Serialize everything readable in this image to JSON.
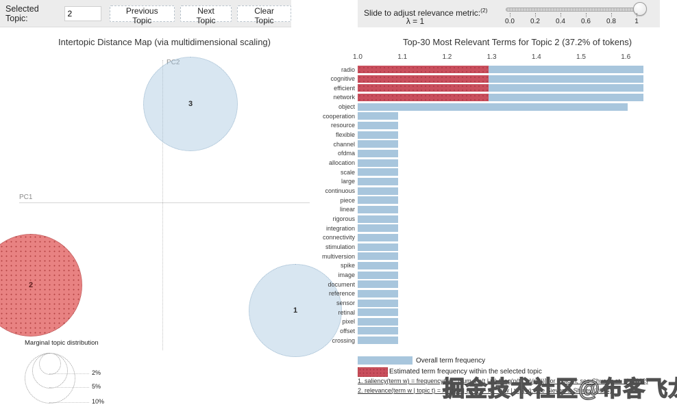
{
  "toolbar": {
    "selected_topic_label": "Selected Topic:",
    "selected_topic_value": "2",
    "previous_label": "Previous Topic",
    "next_label": "Next Topic",
    "clear_label": "Clear Topic"
  },
  "slider": {
    "label": "Slide to adjust relevance metric:",
    "label_footref": "(2)",
    "lambda_label": "λ = 1",
    "value": 1,
    "ticks": [
      "0.0",
      "0.2",
      "0.4",
      "0.6",
      "0.8",
      "1"
    ]
  },
  "chart_data": [
    {
      "type": "scatter",
      "title": "Intertopic Distance Map (via multidimensional scaling)",
      "xlabel": "PC1",
      "ylabel": "PC2",
      "topics": [
        {
          "id": "1",
          "cx": 430,
          "cy": 453,
          "r": 67,
          "selected": false
        },
        {
          "id": "2",
          "cx": 44,
          "cy": 416,
          "r": 74,
          "selected": true
        },
        {
          "id": "3",
          "cx": 277,
          "cy": 151,
          "r": 68,
          "selected": false
        }
      ],
      "size_legend": {
        "title": "Marginal topic distribution",
        "entries": [
          {
            "label": "2%",
            "r": 15
          },
          {
            "label": "5%",
            "r": 25
          },
          {
            "label": "10%",
            "r": 36
          }
        ]
      }
    },
    {
      "type": "bar",
      "title": "Top-30 Most Relevant Terms for Topic 2 (37.2% of tokens)",
      "x_ticks": [
        "1.0",
        "1.1",
        "1.2",
        "1.3",
        "1.4",
        "1.5",
        "1.6"
      ],
      "xlim": [
        1.0,
        1.645
      ],
      "grid": false,
      "legend_position": "bottom",
      "categories": [
        "radio",
        "cognitive",
        "efficient",
        "network",
        "object",
        "cooperation",
        "resource",
        "flexible",
        "channel",
        "ofdma",
        "allocation",
        "scale",
        "large",
        "continuous",
        "piece",
        "linear",
        "rigorous",
        "integration",
        "connectivity",
        "stimulation",
        "multiversion",
        "spike",
        "image",
        "document",
        "reference",
        "sensor",
        "retinal",
        "pixel",
        "offset",
        "crossing"
      ],
      "series": [
        {
          "name": "Overall term frequency",
          "color": "#a8c6dd",
          "values": [
            1.64,
            1.64,
            1.64,
            1.64,
            1.605,
            1.09,
            1.09,
            1.09,
            1.09,
            1.09,
            1.09,
            1.09,
            1.09,
            1.09,
            1.09,
            1.09,
            1.09,
            1.09,
            1.09,
            1.09,
            1.09,
            1.09,
            1.09,
            1.09,
            1.09,
            1.09,
            1.09,
            1.09,
            1.09,
            1.09
          ]
        },
        {
          "name": "Estimated term frequency within the selected topic",
          "color": "#c94f5d",
          "values": [
            1.293,
            1.293,
            1.293,
            1.293,
            null,
            null,
            null,
            null,
            null,
            null,
            null,
            null,
            null,
            null,
            null,
            null,
            null,
            null,
            null,
            null,
            null,
            null,
            null,
            null,
            null,
            null,
            null,
            null,
            null,
            null
          ]
        }
      ]
    }
  ],
  "bar_legend": {
    "overall": "Overall term frequency",
    "estimated": "Estimated term frequency within the selected topic"
  },
  "footnotes": {
    "line1": "1. saliency(term w) = frequency(w) * [sum_t p(t | w) * log(p(t | w)/p(t))] for topics t; see Chuang et. al (2012)",
    "line2": "2. relevance(term w | topic t) = λ * p(w | t) + (1 - λ) * p(w | t)/p(w); see Sievert & Shirley (2014)"
  },
  "watermark": "掘金技术社区@布客飞龙"
}
